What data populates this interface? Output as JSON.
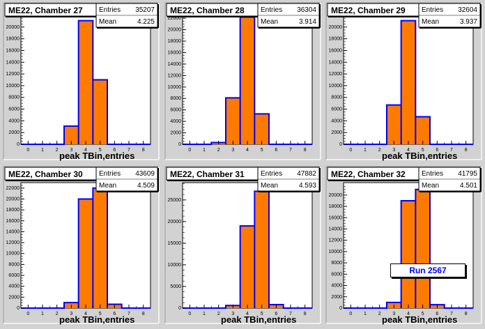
{
  "chart_data": [
    {
      "type": "bar",
      "title": "ME22, Chamber 27",
      "xlabel": "peak TBin,entries",
      "stats": {
        "entries_label": "Entries",
        "entries": "35207",
        "mean_label": "Mean",
        "mean": "4.225"
      },
      "x_ticks": [
        0,
        1,
        2,
        3,
        4,
        5,
        6,
        7,
        8
      ],
      "ylim": [
        0,
        22000
      ],
      "y_ticks": [
        0,
        2000,
        4000,
        6000,
        8000,
        10000,
        12000,
        14000,
        16000,
        18000,
        20000,
        22000
      ],
      "bins": [
        [
          2.5,
          3.5,
          3100
        ],
        [
          3.5,
          4.5,
          21100
        ],
        [
          4.5,
          5.5,
          11000
        ]
      ]
    },
    {
      "type": "bar",
      "title": "ME22, Chamber 28",
      "xlabel": "",
      "stats": {
        "entries_label": "Entries",
        "entries": "36304",
        "mean_label": "Mean",
        "mean": "3.914"
      },
      "x_ticks": [
        0,
        1,
        2,
        3,
        4,
        5,
        6,
        7,
        8
      ],
      "ylim": [
        0,
        22500
      ],
      "y_ticks": [
        0,
        2000,
        4000,
        6000,
        8000,
        10000,
        12000,
        14000,
        16000,
        18000,
        20000,
        22000
      ],
      "bins": [
        [
          1.5,
          2.5,
          300
        ],
        [
          2.5,
          3.5,
          8100
        ],
        [
          3.5,
          4.5,
          22200
        ],
        [
          4.5,
          5.5,
          5300
        ]
      ]
    },
    {
      "type": "bar",
      "title": "ME22, Chamber 29",
      "xlabel": "peak TBin,entries",
      "stats": {
        "entries_label": "Entries",
        "entries": "32604",
        "mean_label": "Mean",
        "mean": "3.937"
      },
      "x_ticks": [
        0,
        1,
        2,
        3,
        4,
        5,
        6,
        7,
        8
      ],
      "ylim": [
        0,
        22000
      ],
      "y_ticks": [
        0,
        2000,
        4000,
        6000,
        8000,
        10000,
        12000,
        14000,
        16000,
        18000,
        20000,
        22000
      ],
      "bins": [
        [
          2.5,
          3.5,
          6700
        ],
        [
          3.5,
          4.5,
          21100
        ],
        [
          4.5,
          5.5,
          4700
        ]
      ]
    },
    {
      "type": "bar",
      "title": "ME22, Chamber 30",
      "xlabel": "peak TBin,entries",
      "stats": {
        "entries_label": "Entries",
        "entries": "43609",
        "mean_label": "Mean",
        "mean": "4.509"
      },
      "x_ticks": [
        0,
        1,
        2,
        3,
        4,
        5,
        6,
        7,
        8
      ],
      "ylim": [
        0,
        23000
      ],
      "y_ticks": [
        0,
        2000,
        4000,
        6000,
        8000,
        10000,
        12000,
        14000,
        16000,
        18000,
        20000,
        22000
      ],
      "bins": [
        [
          2.5,
          3.5,
          1000
        ],
        [
          3.5,
          4.5,
          20000
        ],
        [
          4.5,
          5.5,
          22000
        ],
        [
          5.5,
          6.5,
          700
        ]
      ]
    },
    {
      "type": "bar",
      "title": "ME22, Chamber 31",
      "xlabel": "peak TBin,entries",
      "stats": {
        "entries_label": "Entries",
        "entries": "47882",
        "mean_label": "Mean",
        "mean": "4.593"
      },
      "x_ticks": [
        0,
        1,
        2,
        3,
        4,
        5,
        6,
        7,
        8
      ],
      "ylim": [
        0,
        29000
      ],
      "y_ticks": [
        0,
        5000,
        10000,
        15000,
        20000,
        25000
      ],
      "bins": [
        [
          2.5,
          3.5,
          600
        ],
        [
          3.5,
          4.5,
          19000
        ],
        [
          4.5,
          5.5,
          27000
        ],
        [
          5.5,
          6.5,
          800
        ]
      ]
    },
    {
      "type": "bar",
      "title": "ME22, Chamber 32",
      "xlabel": "peak TBin,entries",
      "stats": {
        "entries_label": "Entries",
        "entries": "41795",
        "mean_label": "Mean",
        "mean": "4.501"
      },
      "x_ticks": [
        0,
        1,
        2,
        3,
        4,
        5,
        6,
        7,
        8
      ],
      "ylim": [
        0,
        22200
      ],
      "y_ticks": [
        0,
        2000,
        4000,
        6000,
        8000,
        10000,
        12000,
        14000,
        16000,
        18000,
        20000
      ],
      "bins": [
        [
          2.5,
          3.5,
          1000
        ],
        [
          3.5,
          4.5,
          19000
        ],
        [
          4.5,
          5.5,
          21000
        ],
        [
          5.5,
          6.5,
          600
        ]
      ]
    }
  ],
  "run_label": "Run 2567",
  "colors": {
    "fill": "#ff7b00",
    "line": "#0000ff",
    "frame": "#000000",
    "background": "#ffffff",
    "page": "#d2d2d2"
  }
}
